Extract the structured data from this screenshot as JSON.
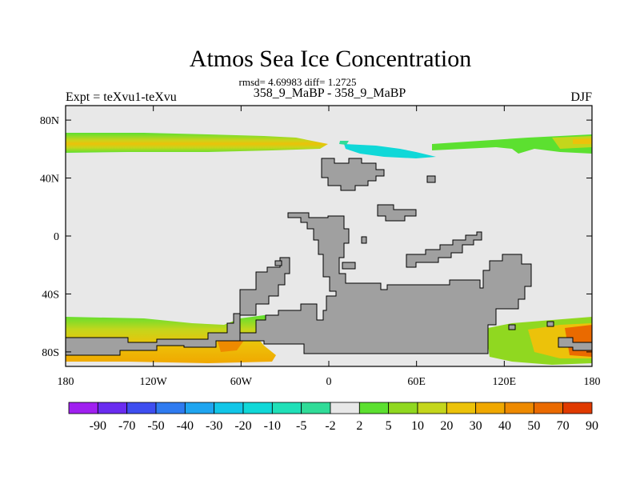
{
  "chart_data": {
    "type": "heatmap",
    "title": "Atmos Sea Ice Concentration",
    "stats_line": "rmsd= 4.69983 diff= 1.2725",
    "subtitle": "358_9_MaBP - 358_9_MaBP",
    "left_label": "Expt = teXvu1-teXvu",
    "right_label": "DJF",
    "x_range": [
      -180,
      180
    ],
    "y_range": [
      -90,
      90
    ],
    "x_ticks": [
      {
        "value": -180,
        "label": "180"
      },
      {
        "value": -120,
        "label": "120W"
      },
      {
        "value": -60,
        "label": "60W"
      },
      {
        "value": 0,
        "label": "0"
      },
      {
        "value": 60,
        "label": "60E"
      },
      {
        "value": 120,
        "label": "120E"
      },
      {
        "value": 180,
        "label": "180"
      }
    ],
    "y_ticks": [
      {
        "value": 80,
        "label": "80N"
      },
      {
        "value": 40,
        "label": "40N"
      },
      {
        "value": 0,
        "label": "0"
      },
      {
        "value": -40,
        "label": "40S"
      },
      {
        "value": -80,
        "label": "80S"
      }
    ],
    "colorbar": {
      "labels": [
        "-90",
        "-70",
        "-50",
        "-40",
        "-30",
        "-20",
        "-10",
        "-5",
        "-2",
        "2",
        "5",
        "10",
        "20",
        "30",
        "40",
        "50",
        "70",
        "90"
      ],
      "colors": [
        "#a020f0",
        "#6a2cf0",
        "#3e4ef0",
        "#2f7bf0",
        "#1fa5f0",
        "#12c6e8",
        "#10d8d8",
        "#20e0b8",
        "#30dc98",
        "#e8e8e8",
        "#5ce030",
        "#90d820",
        "#c4d61c",
        "#ecc20a",
        "#f0a800",
        "#ee8a00",
        "#ea6a00",
        "#e03a00"
      ]
    },
    "background_value": "0 (no change, light gray)",
    "land_color": "#a0a0a0",
    "zero_color": "#e8e8e8",
    "regions": [
      {
        "name": "arctic-positive-west",
        "range": "2 to 30",
        "peak": 30
      },
      {
        "name": "arctic-negative-center",
        "range": "-10 to -2",
        "peak": -10
      },
      {
        "name": "arctic-positive-east",
        "range": "2 to 30",
        "peak": 30
      },
      {
        "name": "antarctic-positive-west",
        "range": "5 to 40",
        "peak": 40
      },
      {
        "name": "antarctic-positive-east",
        "range": "5 to 70",
        "peak": 70
      }
    ]
  }
}
